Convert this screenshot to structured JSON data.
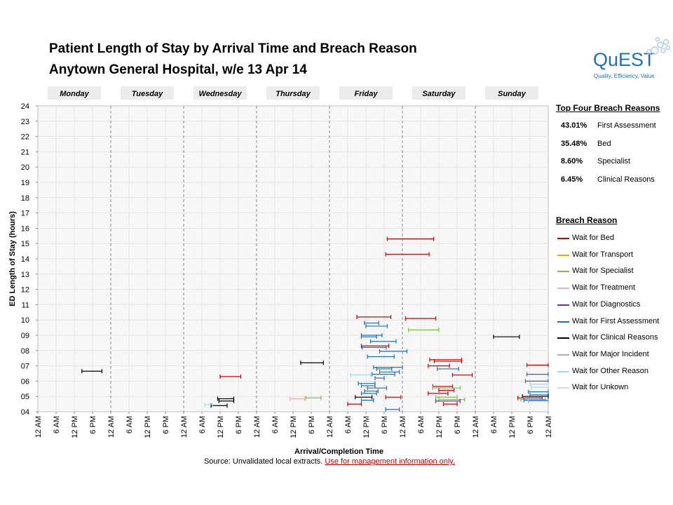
{
  "header": {
    "title_line1": "Patient Length of Stay by Arrival Time and Breach Reason",
    "title_line2": "Anytown General Hospital, w/e 13 Apr 14"
  },
  "logo": {
    "name": "QuEST",
    "tagline": "Quality, Efficiency, Value",
    "color": "#1f6fc0"
  },
  "top_reasons": {
    "title": "Top Four Breach Reasons",
    "items": [
      {
        "pct": "43.01%",
        "label": "First Assessment"
      },
      {
        "pct": "35.48%",
        "label": "Bed"
      },
      {
        "pct": "8.60%",
        "label": "Specialist"
      },
      {
        "pct": "6.45%",
        "label": "Clinical Reasons"
      }
    ]
  },
  "legend": {
    "title": "Breach Reason",
    "items": [
      {
        "label": "Wait for Bed",
        "color": "#d00000"
      },
      {
        "label": "Wait for Transport",
        "color": "#f0a800"
      },
      {
        "label": "Wait for Specialist",
        "color": "#80c040"
      },
      {
        "label": "Wait for Treatment",
        "color": "#f0b0b0"
      },
      {
        "label": "Wait for Diagnostics",
        "color": "#7030a0"
      },
      {
        "label": "Wait for First Assessment",
        "color": "#1f6fc0"
      },
      {
        "label": "Wait for Clinical Reasons",
        "color": "#000000"
      },
      {
        "label": "Wait for Major Incident",
        "color": "#b0b0b0"
      },
      {
        "label": "Wait for Other Reason",
        "color": "#a8d8e8"
      },
      {
        "label": "Wait for Unkown",
        "color": "#d8d8d8"
      }
    ]
  },
  "source": {
    "text": "Source: Unvalidated local extracts. ",
    "link": "Use for management  information only."
  },
  "chart_data": {
    "type": "range-bar",
    "xlabel": "Arrival/Completion Time",
    "ylabel": "ED Length of Stay (hours)",
    "days": [
      "Monday",
      "Tuesday",
      "Wednesday",
      "Thursday",
      "Friday",
      "Saturday",
      "Sunday"
    ],
    "x_ticks": [
      "12 AM",
      "6 AM",
      "12 PM",
      "6 PM",
      "12 AM",
      "6 AM",
      "12 PM",
      "6 PM",
      "12 AM",
      "6 AM",
      "12 PM",
      "6 PM",
      "12 AM",
      "6 AM",
      "12 PM",
      "6 PM",
      "12 AM",
      "6 AM",
      "12 PM",
      "6 PM",
      "12 AM",
      "6 AM",
      "12 PM",
      "6 PM",
      "12 AM",
      "6 AM",
      "12 PM",
      "6 PM",
      "12 AM"
    ],
    "x_range_hours": [
      0,
      168
    ],
    "y_ticks": [
      "04",
      "05",
      "06",
      "07",
      "08",
      "09",
      "10",
      "11",
      "12",
      "13",
      "14",
      "15",
      "16",
      "17",
      "18",
      "19",
      "20",
      "21",
      "22",
      "23",
      "24"
    ],
    "y_range": [
      4,
      24
    ],
    "grid": true,
    "stays": [
      {
        "start": 14.5,
        "end": 21.1,
        "los": 6.65,
        "reason": 6
      },
      {
        "start": 57.0,
        "end": 62.3,
        "los": 4.4,
        "reason": 6
      },
      {
        "start": 59.6,
        "end": 64.5,
        "los": 4.7,
        "reason": 6
      },
      {
        "start": 59.2,
        "end": 64.5,
        "los": 4.85,
        "reason": 6
      },
      {
        "start": 55.0,
        "end": 57.5,
        "los": 4.45,
        "reason": 8
      },
      {
        "start": 60.0,
        "end": 66.8,
        "los": 6.3,
        "reason": 0
      },
      {
        "start": 83.0,
        "end": 87.8,
        "los": 4.85,
        "reason": 3
      },
      {
        "start": 88.2,
        "end": 93.2,
        "los": 4.9,
        "reason": 2
      },
      {
        "start": 86.5,
        "end": 94.0,
        "los": 7.2,
        "reason": 6
      },
      {
        "start": 105.0,
        "end": 116.2,
        "los": 10.2,
        "reason": 0
      },
      {
        "start": 107.5,
        "end": 112.2,
        "los": 9.8,
        "reason": 5
      },
      {
        "start": 108.0,
        "end": 115.0,
        "los": 9.6,
        "reason": 5
      },
      {
        "start": 106.5,
        "end": 113.3,
        "los": 9.0,
        "reason": 5
      },
      {
        "start": 106.5,
        "end": 111.5,
        "los": 8.9,
        "reason": 5
      },
      {
        "start": 109.5,
        "end": 117.9,
        "los": 8.6,
        "reason": 5
      },
      {
        "start": 106.5,
        "end": 115.5,
        "los": 8.3,
        "reason": 0
      },
      {
        "start": 106.8,
        "end": 114.7,
        "los": 8.2,
        "reason": 5
      },
      {
        "start": 112.5,
        "end": 121.5,
        "los": 7.95,
        "reason": 5
      },
      {
        "start": 108.5,
        "end": 117.3,
        "los": 7.6,
        "reason": 5
      },
      {
        "start": 110.5,
        "end": 120.0,
        "los": 6.9,
        "reason": 5
      },
      {
        "start": 111.5,
        "end": 116.5,
        "los": 6.8,
        "reason": 5
      },
      {
        "start": 112.5,
        "end": 119.0,
        "los": 6.6,
        "reason": 5
      },
      {
        "start": 110.0,
        "end": 117.5,
        "los": 6.45,
        "reason": 5
      },
      {
        "start": 103.0,
        "end": 109.5,
        "los": 6.4,
        "reason": 8
      },
      {
        "start": 111.0,
        "end": 114.0,
        "los": 6.2,
        "reason": 5
      },
      {
        "start": 105.5,
        "end": 111.0,
        "los": 5.85,
        "reason": 5
      },
      {
        "start": 106.5,
        "end": 111.0,
        "los": 5.7,
        "reason": 5
      },
      {
        "start": 108.5,
        "end": 114.8,
        "los": 5.55,
        "reason": 5
      },
      {
        "start": 107.5,
        "end": 112.0,
        "los": 5.35,
        "reason": 5
      },
      {
        "start": 106.5,
        "end": 111.5,
        "los": 5.2,
        "reason": 5
      },
      {
        "start": 104.5,
        "end": 110.0,
        "los": 4.95,
        "reason": 6
      },
      {
        "start": 106.5,
        "end": 110.5,
        "los": 4.75,
        "reason": 5
      },
      {
        "start": 102.0,
        "end": 106.5,
        "los": 4.5,
        "reason": 0
      },
      {
        "start": 114.5,
        "end": 119.5,
        "los": 4.95,
        "reason": 0
      },
      {
        "start": 114.5,
        "end": 119.0,
        "los": 4.15,
        "reason": 5
      },
      {
        "start": 115.0,
        "end": 130.3,
        "los": 15.3,
        "reason": 0
      },
      {
        "start": 114.5,
        "end": 128.8,
        "los": 14.3,
        "reason": 0
      },
      {
        "start": 121.0,
        "end": 131.0,
        "los": 10.1,
        "reason": 0
      },
      {
        "start": 122.0,
        "end": 132.0,
        "los": 9.35,
        "reason": 2
      },
      {
        "start": 129.0,
        "end": 139.5,
        "los": 7.4,
        "reason": 0
      },
      {
        "start": 130.5,
        "end": 139.5,
        "los": 7.3,
        "reason": 0
      },
      {
        "start": 128.5,
        "end": 135.5,
        "los": 7.0,
        "reason": 0
      },
      {
        "start": 131.5,
        "end": 138.5,
        "los": 6.8,
        "reason": 5
      },
      {
        "start": 136.5,
        "end": 143.0,
        "los": 6.4,
        "reason": 0
      },
      {
        "start": 130.0,
        "end": 136.5,
        "los": 5.65,
        "reason": 0
      },
      {
        "start": 130.0,
        "end": 139.0,
        "los": 5.55,
        "reason": 2
      },
      {
        "start": 132.0,
        "end": 137.0,
        "los": 5.4,
        "reason": 0
      },
      {
        "start": 128.5,
        "end": 135.0,
        "los": 5.2,
        "reason": 0
      },
      {
        "start": 131.0,
        "end": 138.0,
        "los": 4.95,
        "reason": 2
      },
      {
        "start": 132.0,
        "end": 140.5,
        "los": 4.8,
        "reason": 2
      },
      {
        "start": 131.0,
        "end": 139.0,
        "los": 4.7,
        "reason": 4
      },
      {
        "start": 133.5,
        "end": 138.0,
        "los": 4.5,
        "reason": 0
      },
      {
        "start": 150.0,
        "end": 158.5,
        "los": 8.9,
        "reason": 6
      },
      {
        "start": 161.0,
        "end": 168.0,
        "los": 7.05,
        "reason": 0
      },
      {
        "start": 161.0,
        "end": 168.0,
        "los": 6.45,
        "reason": 5
      },
      {
        "start": 160.5,
        "end": 168.0,
        "los": 6.0,
        "reason": 5
      },
      {
        "start": 162.0,
        "end": 168.0,
        "los": 5.8,
        "reason": 8
      },
      {
        "start": 162.5,
        "end": 168.0,
        "los": 5.6,
        "reason": 8
      },
      {
        "start": 161.5,
        "end": 168.0,
        "los": 5.3,
        "reason": 5
      },
      {
        "start": 162.0,
        "end": 168.0,
        "los": 5.1,
        "reason": 5
      },
      {
        "start": 159.5,
        "end": 168.0,
        "los": 5.0,
        "reason": 6
      },
      {
        "start": 158.0,
        "end": 166.0,
        "los": 4.9,
        "reason": 0
      },
      {
        "start": 159.0,
        "end": 167.0,
        "los": 4.8,
        "reason": 2
      },
      {
        "start": 160.0,
        "end": 168.0,
        "los": 4.75,
        "reason": 5
      },
      {
        "start": 161.5,
        "end": 168.0,
        "los": 4.7,
        "reason": 7
      }
    ]
  }
}
